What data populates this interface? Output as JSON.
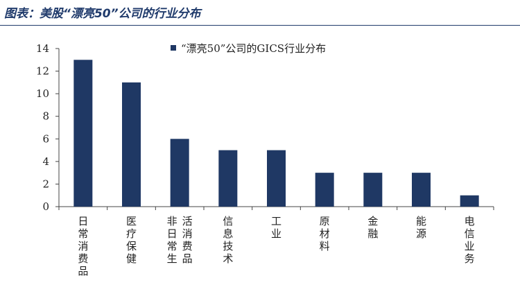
{
  "figure": {
    "title": "图表：美股“漂亮50”公司的行业分布"
  },
  "chart_data": {
    "type": "bar",
    "categories": [
      "日常消费品",
      "医疗保健",
      "非日常生活消费品",
      "信息技术",
      "工业",
      "原材料",
      "金融",
      "能源",
      "电信业务"
    ],
    "series": [
      {
        "name": "“漂亮50”公司的GICS行业分布",
        "values": [
          13,
          11,
          6,
          5,
          5,
          3,
          3,
          3,
          1
        ]
      }
    ],
    "ylim": [
      0,
      14
    ],
    "yticks": [
      0,
      2,
      4,
      6,
      8,
      10,
      12,
      14
    ],
    "grid": false,
    "legend": "top-center",
    "colors": {
      "bar": "#1f3864",
      "axis": "#444444",
      "text": "#222222"
    }
  }
}
